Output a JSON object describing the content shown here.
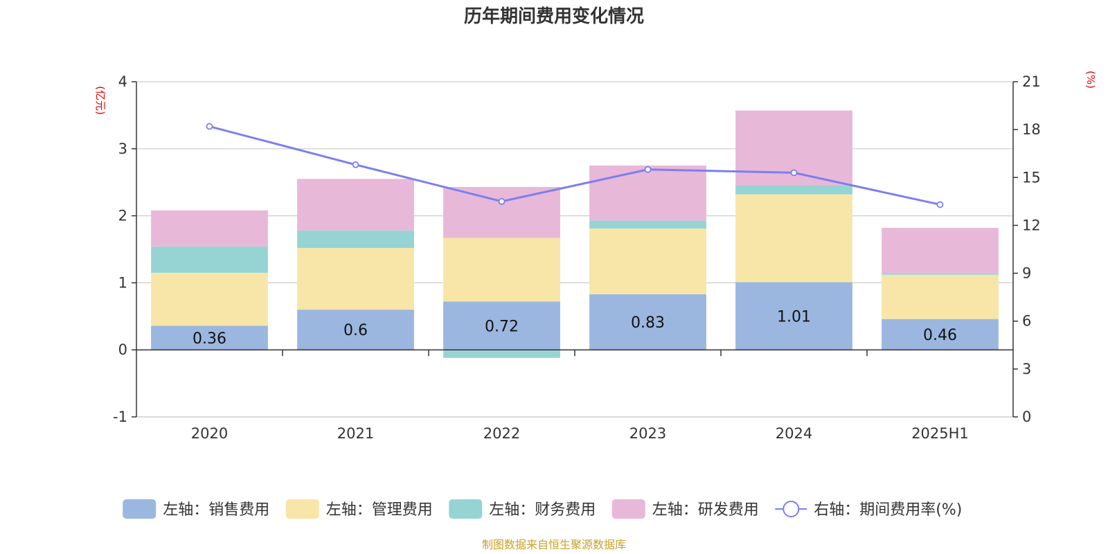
{
  "chart_data": {
    "type": "bar",
    "title": "历年期间费用变化情况",
    "categories": [
      "2020",
      "2021",
      "2022",
      "2023",
      "2024",
      "2025H1"
    ],
    "left_axis": {
      "unit": "(亿元)",
      "ylim": [
        -1,
        4
      ],
      "ticks": [
        -1,
        0,
        1,
        2,
        3,
        4
      ]
    },
    "right_axis": {
      "unit": "(%)",
      "ylim": [
        0,
        21
      ],
      "ticks": [
        0,
        3,
        6,
        9,
        12,
        15,
        18,
        21
      ]
    },
    "stacked": true,
    "series": [
      {
        "name": "左轴：销售费用",
        "kind": "bar",
        "axis": "left",
        "color": "#9bb7e0",
        "values": [
          0.36,
          0.6,
          0.72,
          0.83,
          1.01,
          0.46
        ],
        "labels": [
          "0.36",
          "0.6",
          "0.72",
          "0.83",
          "1.01",
          "0.46"
        ]
      },
      {
        "name": "左轴：管理费用",
        "kind": "bar",
        "axis": "left",
        "color": "#f7e6a8",
        "values": [
          0.79,
          0.92,
          0.95,
          0.98,
          1.31,
          0.66
        ]
      },
      {
        "name": "左轴：财务费用",
        "kind": "bar",
        "axis": "left",
        "color": "#96d4d4",
        "values": [
          0.39,
          0.26,
          -0.12,
          0.12,
          0.13,
          0.02
        ]
      },
      {
        "name": "左轴：研发费用",
        "kind": "bar",
        "axis": "left",
        "color": "#e8b8d8",
        "values": [
          0.54,
          0.77,
          0.76,
          0.82,
          1.12,
          0.68
        ]
      },
      {
        "name": "右轴：期间费用率(%)",
        "kind": "line",
        "axis": "right",
        "color": "#7b7ff0",
        "values": [
          18.2,
          15.8,
          13.5,
          15.5,
          15.3,
          13.3
        ]
      }
    ],
    "legend_position": "bottom",
    "grid": true
  },
  "source_note": "制图数据来自恒生聚源数据库",
  "source_color": "#c9a227"
}
